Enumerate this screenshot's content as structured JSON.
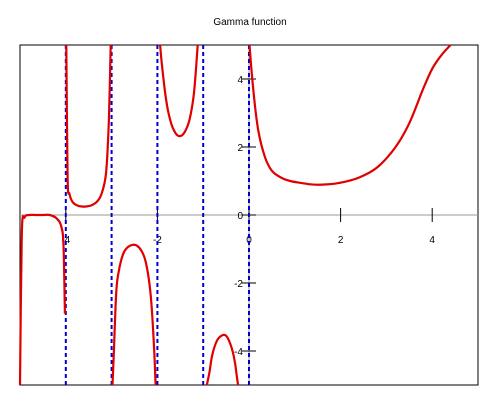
{
  "chart_data": {
    "type": "line",
    "title": "Gamma function",
    "xlabel": "",
    "ylabel": "",
    "xlim": [
      -5,
      5
    ],
    "ylim": [
      -5,
      5
    ],
    "grid": false,
    "x_ticks": [
      -4,
      -2,
      0,
      2,
      4
    ],
    "x_tick_labels": [
      "-4",
      "-2",
      "0",
      "2",
      "4"
    ],
    "y_ticks": [
      -4,
      -2,
      0,
      2,
      4
    ],
    "y_tick_labels": [
      "-4",
      "-2",
      "0",
      "2",
      "4"
    ],
    "asymptotes_x": [
      -4,
      -3,
      -2,
      -1,
      0
    ],
    "series": [
      {
        "color": "#e00000",
        "style": "solid",
        "segments": [
          {
            "x": [
              -5.0,
              -4.96,
              -4.9,
              -4.8,
              -4.65,
              -4.5,
              -4.35,
              -4.2,
              -4.1,
              -4.05,
              -4.02
            ],
            "y": [
              -5.0,
              -0.55,
              -0.07,
              0.0,
              0.0,
              0.0,
              0.0,
              -0.1,
              -0.33,
              -0.9,
              -2.9
            ]
          },
          {
            "x": [
              -3.99,
              -3.96,
              -3.92,
              -3.85,
              -3.75,
              -3.65,
              -3.56,
              -3.45,
              -3.33,
              -3.22,
              -3.12,
              -3.06,
              -3.02
            ],
            "y": [
              5.0,
              1.1,
              0.62,
              0.38,
              0.28,
              0.25,
              0.25,
              0.28,
              0.38,
              0.62,
              1.25,
              2.8,
              5.0
            ]
          },
          {
            "x": [
              -2.98,
              -2.95,
              -2.9,
              -2.85,
              -2.75,
              -2.65,
              -2.55,
              -2.45,
              -2.35,
              -2.25,
              -2.15,
              -2.08,
              -2.04
            ],
            "y": [
              -5.0,
              -4.0,
              -2.3,
              -1.7,
              -1.15,
              -0.95,
              -0.88,
              -0.9,
              -1.05,
              -1.4,
              -2.3,
              -3.7,
              -5.0
            ]
          },
          {
            "x": [
              -1.94,
              -1.9,
              -1.8,
              -1.7,
              -1.6,
              -1.5,
              -1.4,
              -1.3,
              -1.2,
              -1.12
            ],
            "y": [
              5.0,
              4.4,
              3.3,
              2.7,
              2.4,
              2.32,
              2.45,
              2.8,
              3.6,
              5.0
            ]
          },
          {
            "x": [
              -0.92,
              -0.86,
              -0.8,
              -0.7,
              -0.6,
              -0.5,
              -0.42,
              -0.35,
              -0.3,
              -0.26,
              -0.24
            ],
            "y": [
              -5.0,
              -4.6,
              -4.1,
              -3.7,
              -3.55,
              -3.55,
              -3.75,
              -4.05,
              -4.4,
              -4.8,
              -5.0
            ]
          },
          {
            "x": [
              0.01,
              0.1,
              0.2,
              0.35,
              0.5,
              0.7,
              0.9,
              1.1,
              1.3,
              1.46,
              1.7,
              2.0,
              2.4,
              2.8,
              3.2,
              3.5,
              3.8,
              4.0,
              4.2,
              4.4
            ],
            "y": [
              5.0,
              3.6,
              2.5,
              1.7,
              1.3,
              1.1,
              1.0,
              0.95,
              0.91,
              0.89,
              0.9,
              0.95,
              1.1,
              1.4,
              2.0,
              2.7,
              3.7,
              4.3,
              4.7,
              5.0
            ]
          }
        ]
      }
    ]
  }
}
